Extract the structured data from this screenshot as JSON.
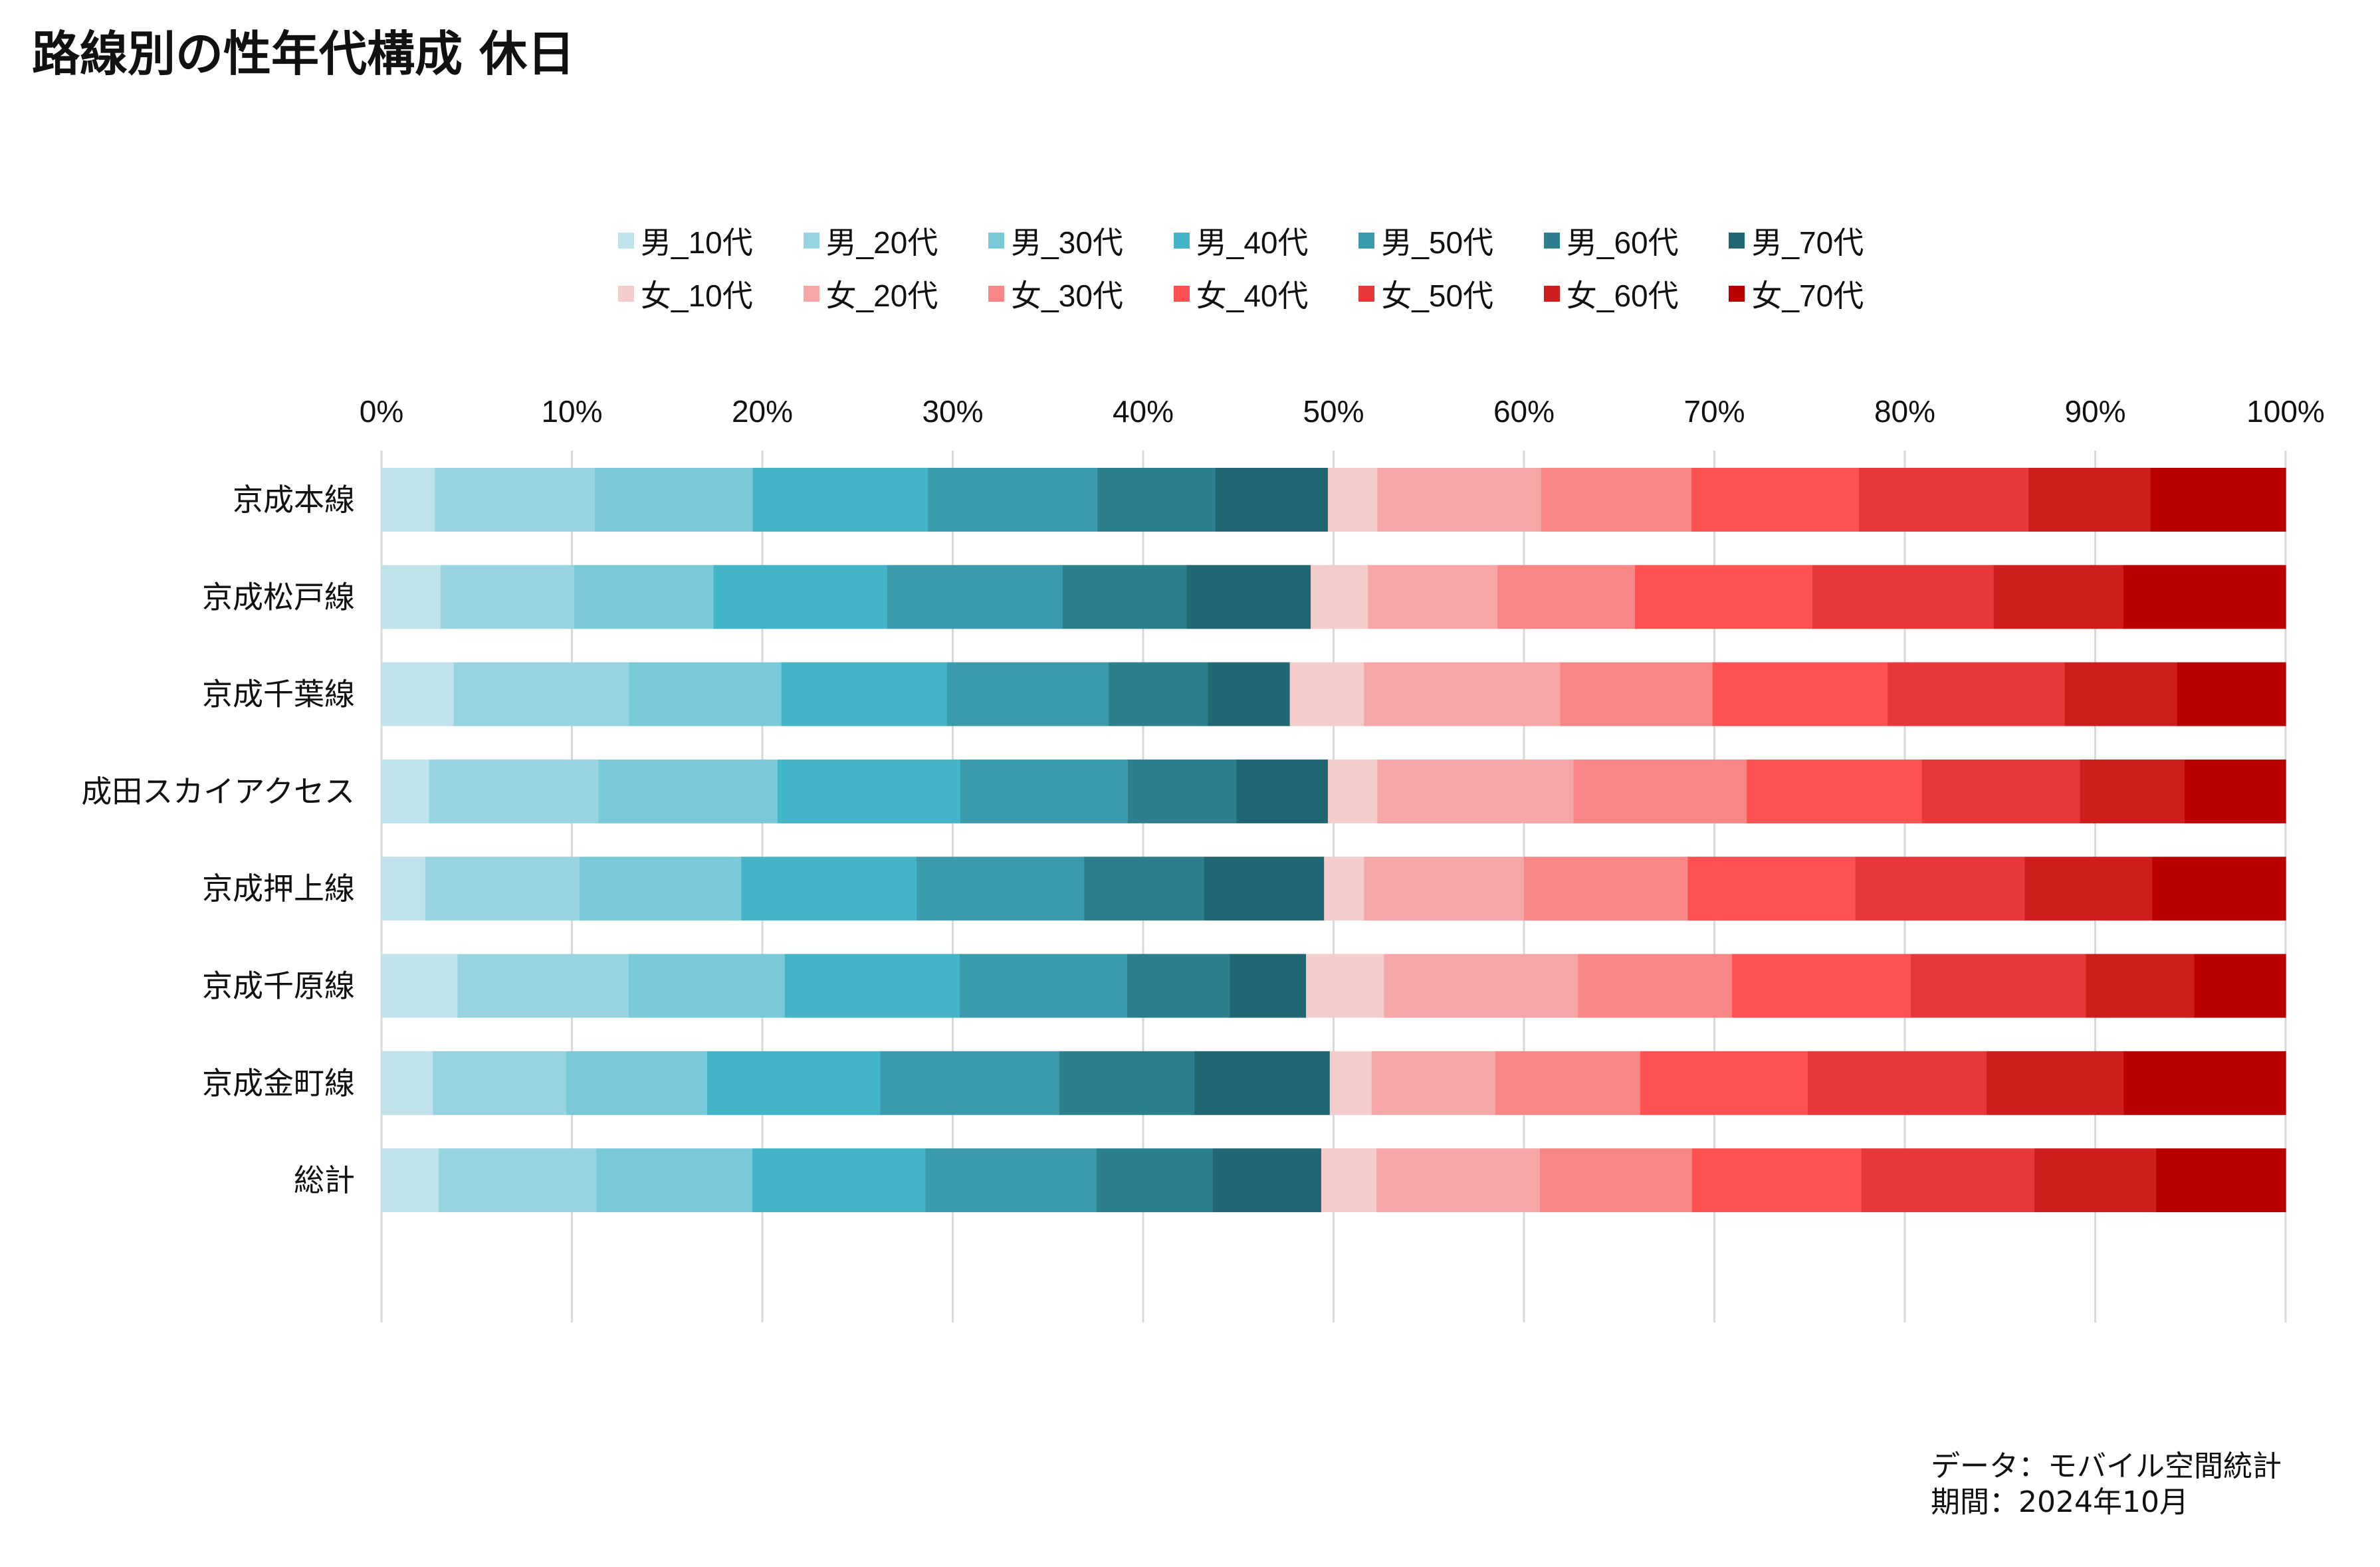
{
  "title": "路線別の性年代構成 休日",
  "caption": {
    "source": "データ：モバイル空間統計",
    "period": "期間：2024年10月"
  },
  "chart_data": {
    "type": "bar",
    "orientation": "horizontal",
    "stacked": "percent",
    "title": "路線別の性年代構成 休日",
    "xlabel": "",
    "ylabel": "",
    "xlim": [
      0,
      100
    ],
    "x_ticks": [
      "0%",
      "10%",
      "20%",
      "30%",
      "40%",
      "50%",
      "60%",
      "70%",
      "80%",
      "90%",
      "100%"
    ],
    "grid": "vertical",
    "legend_position": "top",
    "categories": [
      "京成本線",
      "京成松戸線",
      "京成千葉線",
      "成田スカイアクセス",
      "京成押上線",
      "京成千原線",
      "京成金町線",
      "総計"
    ],
    "series": [
      {
        "name": "男_10代",
        "color": "#c0e2ea",
        "values": [
          2.8,
          3.1,
          3.8,
          2.5,
          2.3,
          4.0,
          2.7,
          3.0
        ]
      },
      {
        "name": "男_20代",
        "color": "#98d4e0",
        "values": [
          8.4,
          7.0,
          9.2,
          8.9,
          8.1,
          9.0,
          7.0,
          8.3
        ]
      },
      {
        "name": "男_30代",
        "color": "#79c9d8",
        "values": [
          8.3,
          7.3,
          8.0,
          9.4,
          8.5,
          8.2,
          7.4,
          8.2
        ]
      },
      {
        "name": "男_40代",
        "color": "#44b5c8",
        "values": [
          9.2,
          9.1,
          8.7,
          9.6,
          9.2,
          9.2,
          9.1,
          9.1
        ]
      },
      {
        "name": "男_50代",
        "color": "#3b9aab",
        "values": [
          8.9,
          9.2,
          8.5,
          8.8,
          8.8,
          8.8,
          9.4,
          9.0
        ]
      },
      {
        "name": "男_60代",
        "color": "#2d7f8d",
        "values": [
          6.2,
          6.5,
          5.2,
          5.7,
          6.3,
          5.4,
          7.1,
          6.1
        ]
      },
      {
        "name": "男_70代",
        "color": "#216673",
        "values": [
          5.9,
          6.5,
          4.3,
          4.8,
          6.3,
          4.0,
          7.1,
          5.7
        ]
      },
      {
        "name": "女_10代",
        "color": "#f4cccc",
        "values": [
          2.6,
          3.0,
          3.9,
          2.6,
          2.1,
          4.1,
          2.2,
          2.9
        ]
      },
      {
        "name": "女_20代",
        "color": "#f6a6a6",
        "values": [
          8.6,
          6.8,
          10.3,
          10.3,
          8.4,
          10.2,
          6.5,
          8.6
        ]
      },
      {
        "name": "女_30代",
        "color": "#f78787",
        "values": [
          7.9,
          7.2,
          8.0,
          9.1,
          8.6,
          8.1,
          7.6,
          8.0
        ]
      },
      {
        "name": "女_40代",
        "color": "#fe5252",
        "values": [
          8.8,
          9.3,
          9.2,
          9.2,
          8.8,
          9.4,
          8.8,
          8.9
        ]
      },
      {
        "name": "女_50代",
        "color": "#e63838",
        "values": [
          8.9,
          9.5,
          9.3,
          8.3,
          8.9,
          9.2,
          9.4,
          9.1
        ]
      },
      {
        "name": "女_60代",
        "color": "#ce1d1d",
        "values": [
          6.4,
          6.8,
          5.9,
          5.5,
          6.7,
          5.7,
          7.2,
          6.4
        ]
      },
      {
        "name": "女_70代",
        "color": "#b80000",
        "values": [
          7.1,
          8.5,
          5.7,
          5.3,
          7.0,
          4.8,
          8.5,
          6.8
        ]
      }
    ]
  }
}
